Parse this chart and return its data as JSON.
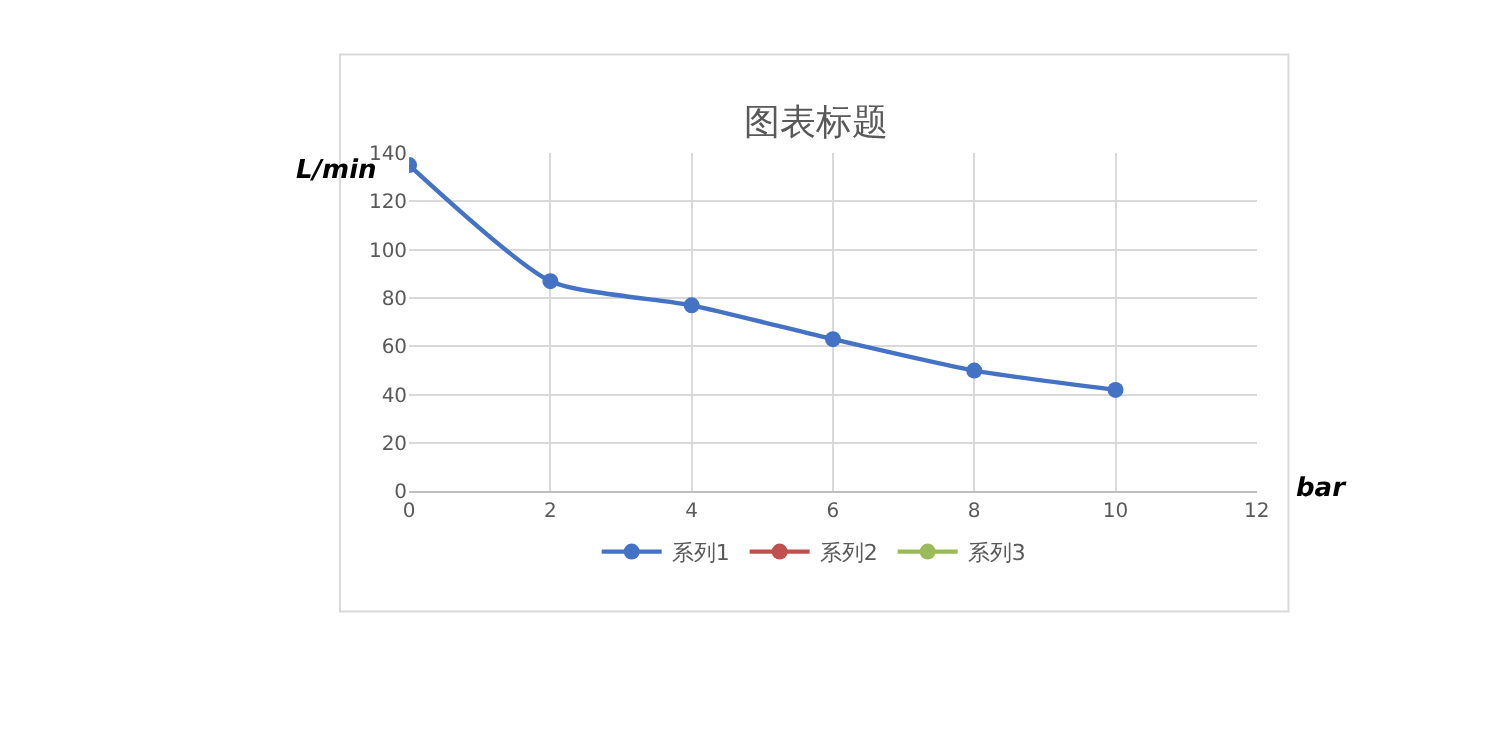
{
  "chart_data": {
    "type": "line",
    "title": "图表标题",
    "xlabel": "bar",
    "ylabel": "L/min",
    "x": [
      0,
      2,
      4,
      6,
      8,
      10
    ],
    "series": [
      {
        "name": "系列1",
        "color": "#4472c4",
        "values": [
          135,
          87,
          77,
          63,
          50,
          42
        ]
      },
      {
        "name": "系列2",
        "color": "#c0504d",
        "values": [
          null,
          null,
          null,
          null,
          null,
          null
        ]
      },
      {
        "name": "系列3",
        "color": "#9bbb59",
        "values": [
          null,
          null,
          null,
          null,
          null,
          null
        ]
      }
    ],
    "xlim": [
      0,
      12
    ],
    "xticks": [
      0,
      2,
      4,
      6,
      8,
      10,
      12
    ],
    "ylim": [
      0,
      140
    ],
    "yticks": [
      0,
      20,
      40,
      60,
      80,
      100,
      120,
      140
    ],
    "grid": true,
    "legend": "bottom",
    "marker": "circle",
    "line_style": "solid"
  }
}
